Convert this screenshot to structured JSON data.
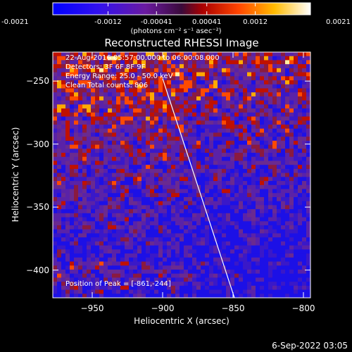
{
  "colorbar": {
    "tick_labels": [
      "-0.0021",
      "-0.0012",
      "-0.00041",
      "0.00041",
      "0.0012",
      "0.0021"
    ],
    "tick_values": [
      -0.0021,
      -0.0012,
      -0.00041,
      0.00041,
      0.0012,
      0.0021
    ],
    "range": [
      -0.0021,
      0.0021
    ],
    "unit_label": "(photons cm⁻² s⁻¹ asec⁻²)",
    "colors": [
      "#0000ff",
      "#5522aa",
      "#aa0000",
      "#ff6600",
      "#ffcc00",
      "#ffffff"
    ]
  },
  "chart_data": {
    "type": "heatmap",
    "title": "Reconstructed RHESSI Image",
    "xlabel": "Heliocentric X (arcsec)",
    "ylabel": "Heliocentric Y (arcsec)",
    "xlim": [
      -978,
      -795
    ],
    "ylim": [
      -422,
      -227
    ],
    "x_ticks": [
      -950,
      -900,
      -850,
      -800
    ],
    "y_ticks": [
      -400,
      -350,
      -300,
      -250
    ],
    "x_tick_labels": [
      "−950",
      "−900",
      "−850",
      "−800"
    ],
    "y_tick_labels": [
      "−400",
      "−350",
      "−300",
      "−250"
    ],
    "limb_line": {
      "x": [
        -900,
        -849
      ],
      "y": [
        -248,
        -422
      ]
    },
    "peak": {
      "x": -861,
      "y": -244
    },
    "annotations": [
      "22-Aug-2016 05:57:00.000 to 06:00:08.000",
      "Detectors: 3F 6F 8F 9F",
      "Energy Range: 25.0 - 50.0 keV",
      "Clean    Total counts: 806",
      "Position of Peak = [-861,-244]"
    ]
  },
  "footer": {
    "date": "6-Sep-2022 03:05"
  }
}
